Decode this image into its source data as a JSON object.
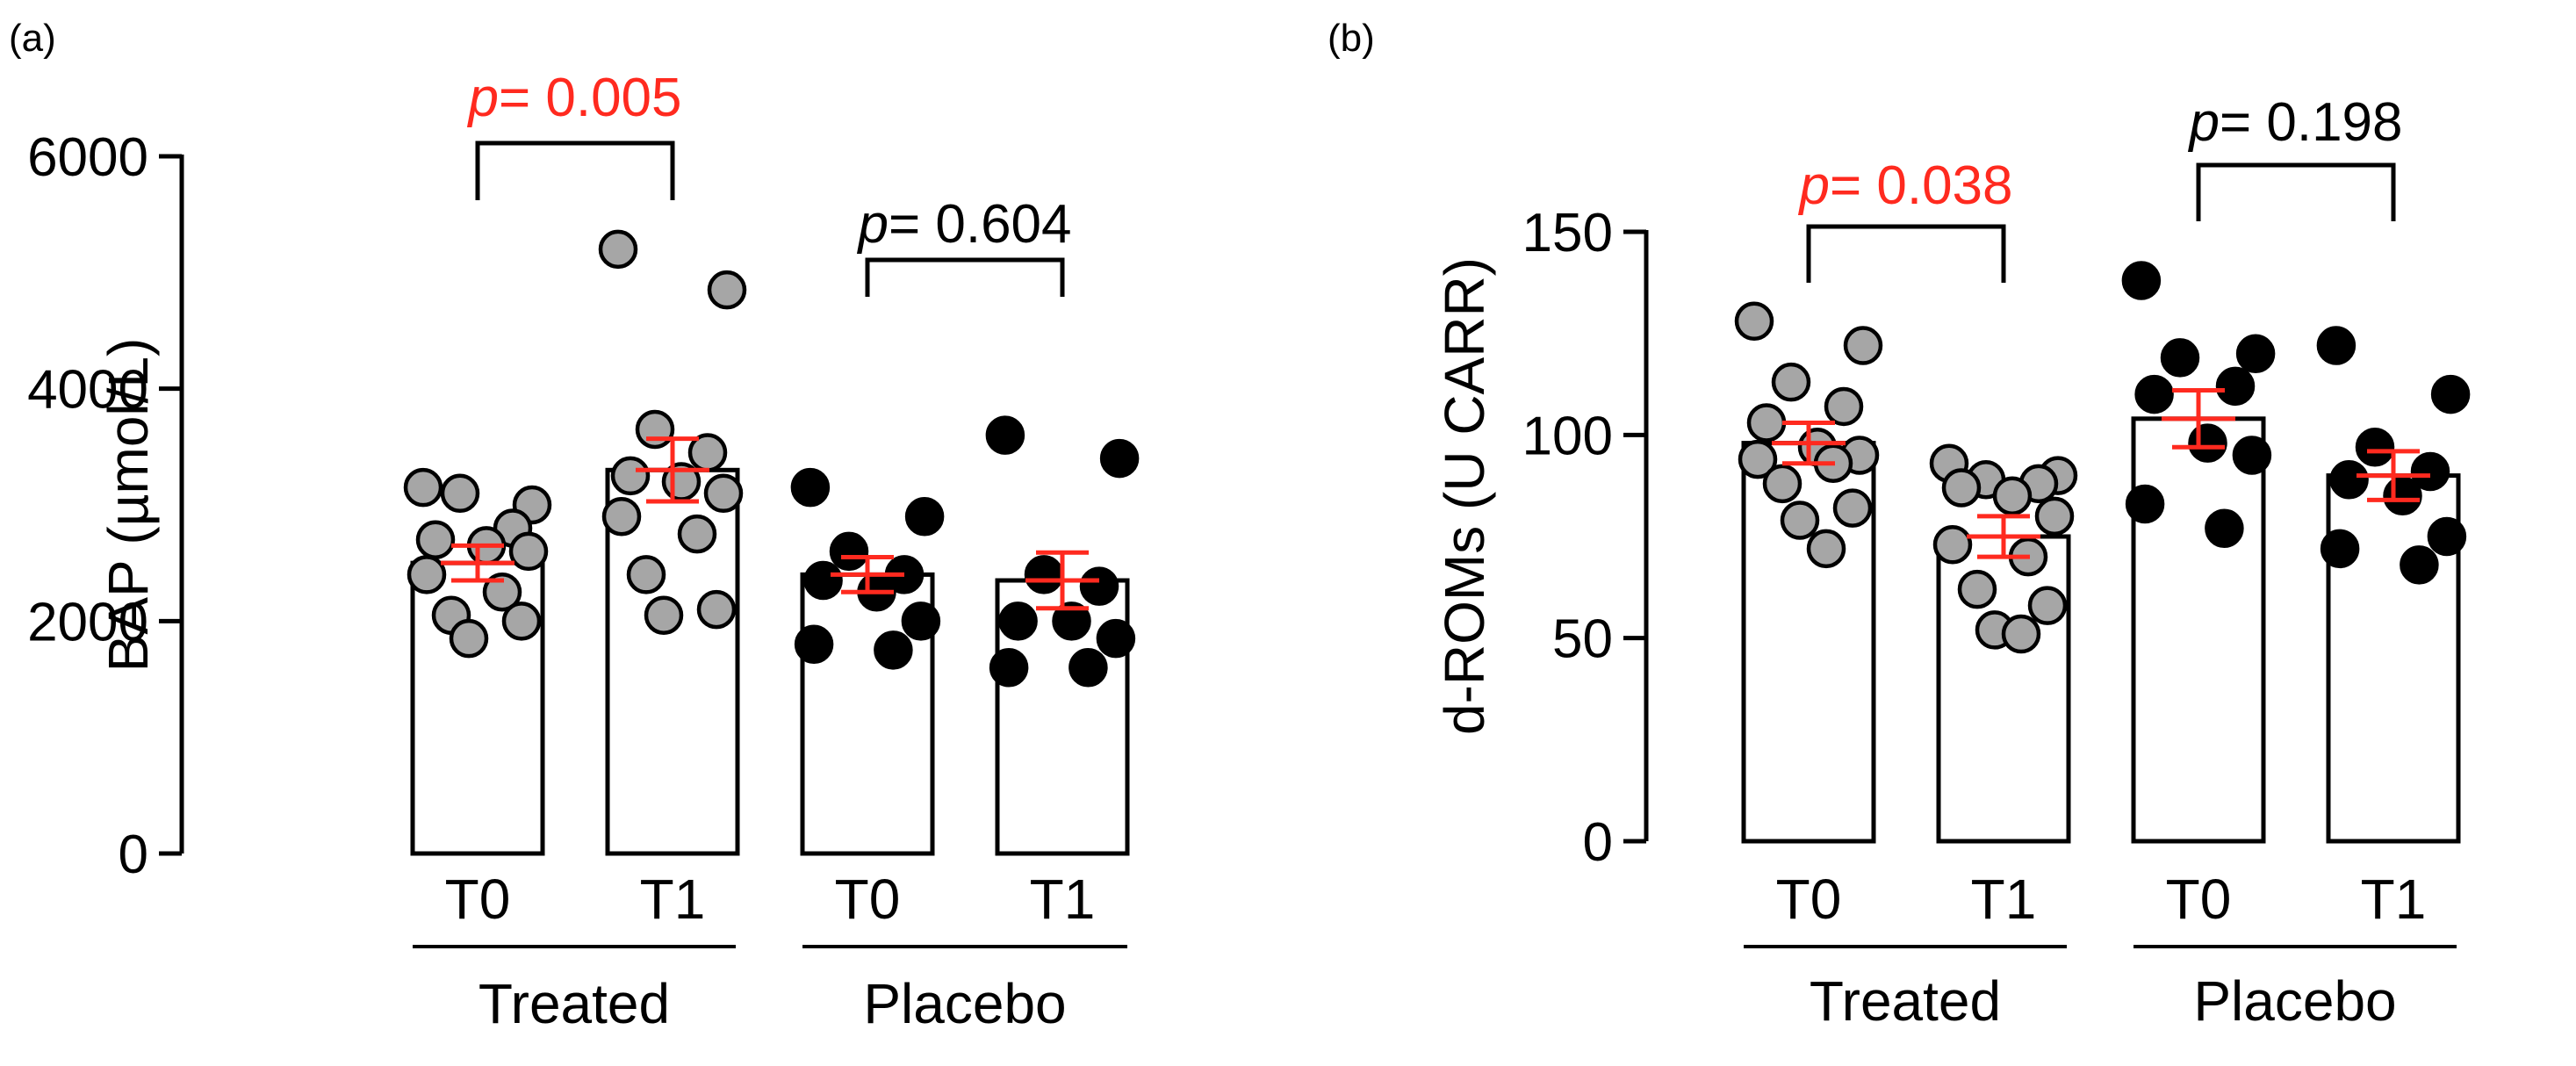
{
  "chart_data": [
    {
      "type": "bar",
      "panel_label": "(a)",
      "ylabel": "BAP (µmol/L)",
      "ylim": [
        0,
        6000
      ],
      "yticks": [
        0,
        2000,
        4000,
        6000
      ],
      "categories": [
        "T0",
        "T1",
        "T0",
        "T1"
      ],
      "groups": [
        {
          "label": "Treated",
          "categories": [
            0,
            1
          ]
        },
        {
          "label": "Placebo",
          "categories": [
            2,
            3
          ]
        }
      ],
      "bars": [
        {
          "category": "T0",
          "group": "Treated",
          "mean": 2500,
          "sem": 150,
          "marker": "gray",
          "points": [
            3150,
            3000,
            3100,
            2800,
            2700,
            2650,
            2600,
            2400,
            2250,
            2050,
            2000,
            1850
          ]
        },
        {
          "category": "T1",
          "group": "Treated",
          "mean": 3300,
          "sem": 270,
          "marker": "gray",
          "points": [
            5200,
            4850,
            3650,
            3450,
            3250,
            3200,
            3100,
            2900,
            2750,
            2400,
            2100,
            2050
          ]
        },
        {
          "category": "T0",
          "group": "Placebo",
          "mean": 2400,
          "sem": 150,
          "marker": "black",
          "points": [
            3150,
            2900,
            2600,
            2400,
            2350,
            2250,
            2000,
            1800,
            1750
          ]
        },
        {
          "category": "T1",
          "group": "Placebo",
          "mean": 2350,
          "sem": 240,
          "marker": "black",
          "points": [
            3600,
            3400,
            2400,
            2300,
            2000,
            2000,
            1850,
            1600,
            1600
          ]
        }
      ],
      "comparisons": [
        {
          "from": 0,
          "to": 1,
          "label_p": "p",
          "label_rest": "= 0.005",
          "color": "#ff2a1f"
        },
        {
          "from": 2,
          "to": 3,
          "label_p": "p",
          "label_rest": "= 0.604",
          "color": "#000000"
        }
      ]
    },
    {
      "type": "bar",
      "panel_label": "(b)",
      "ylabel": "d-ROMs (U CARR)",
      "ylim": [
        0,
        150
      ],
      "yticks": [
        0,
        50,
        100,
        150
      ],
      "categories": [
        "T0",
        "T1",
        "T0",
        "T1"
      ],
      "groups": [
        {
          "label": "Treated",
          "categories": [
            0,
            1
          ]
        },
        {
          "label": "Placebo",
          "categories": [
            2,
            3
          ]
        }
      ],
      "bars": [
        {
          "category": "T0",
          "group": "Treated",
          "mean": 98,
          "sem": 5,
          "marker": "gray",
          "points": [
            128,
            122,
            113,
            107,
            103,
            97,
            95,
            94,
            93,
            88,
            82,
            79,
            72
          ]
        },
        {
          "category": "T1",
          "group": "Treated",
          "mean": 75,
          "sem": 5,
          "marker": "gray",
          "points": [
            93,
            90,
            89,
            88,
            87,
            85,
            80,
            73,
            70,
            62,
            58,
            52,
            51
          ]
        },
        {
          "category": "T0",
          "group": "Placebo",
          "mean": 104,
          "sem": 7,
          "marker": "black",
          "points": [
            138,
            120,
            119,
            112,
            110,
            98,
            95,
            83,
            77
          ]
        },
        {
          "category": "T1",
          "group": "Placebo",
          "mean": 90,
          "sem": 6,
          "marker": "black",
          "points": [
            122,
            110,
            97,
            91,
            89,
            85,
            75,
            72,
            68
          ]
        }
      ],
      "comparisons": [
        {
          "from": 0,
          "to": 1,
          "label_p": "p",
          "label_rest": "= 0.038",
          "color": "#ff2a1f"
        },
        {
          "from": 2,
          "to": 3,
          "label_p": "p",
          "label_rest": "= 0.198",
          "color": "#000000"
        }
      ]
    }
  ]
}
